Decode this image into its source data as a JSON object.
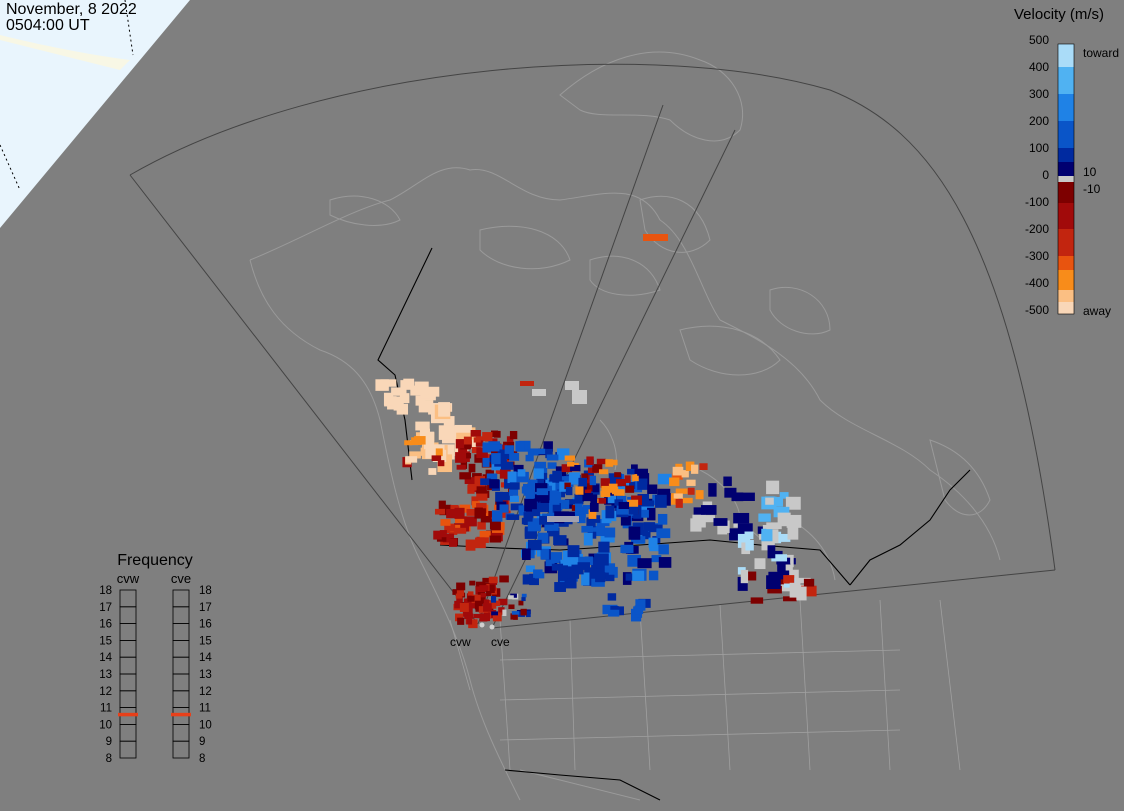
{
  "header": {
    "date": "November, 8 2022",
    "time": "0504:00 UT"
  },
  "colorbar": {
    "title": "Velocity (m/s)",
    "ticks": [
      "500",
      "400",
      "300",
      "200",
      "100",
      "0",
      "-100",
      "-200",
      "-300",
      "-400",
      "-500"
    ],
    "inner_pos": "10",
    "inner_neg": "-10",
    "toward": "toward",
    "away": "away",
    "colors": [
      "#f9d7b8",
      "#fbbf83",
      "#f88c1a",
      "#e8540f",
      "#c2250f",
      "#a10a0a",
      "#7d0000",
      "#c8c8c8",
      "#000070",
      "#002aa0",
      "#0a55c8",
      "#1f82e6",
      "#50b2f2",
      "#aadcf8"
    ]
  },
  "frequency": {
    "title": "Frequency",
    "radars": [
      "cvw",
      "cve"
    ],
    "scale": [
      "18",
      "17",
      "16",
      "15",
      "14",
      "13",
      "12",
      "11",
      "10",
      "9",
      "8"
    ],
    "cvw_mhz": 10.6,
    "cve_mhz": 10.6,
    "marker_color": "#e8401a"
  },
  "map": {
    "radar_labels": [
      "cvw",
      "cve"
    ],
    "ocean_color": "#7f7f7f",
    "land_color": "#7f7f7f",
    "coast_color": "#9a9a9a",
    "border_color": "#000000"
  }
}
